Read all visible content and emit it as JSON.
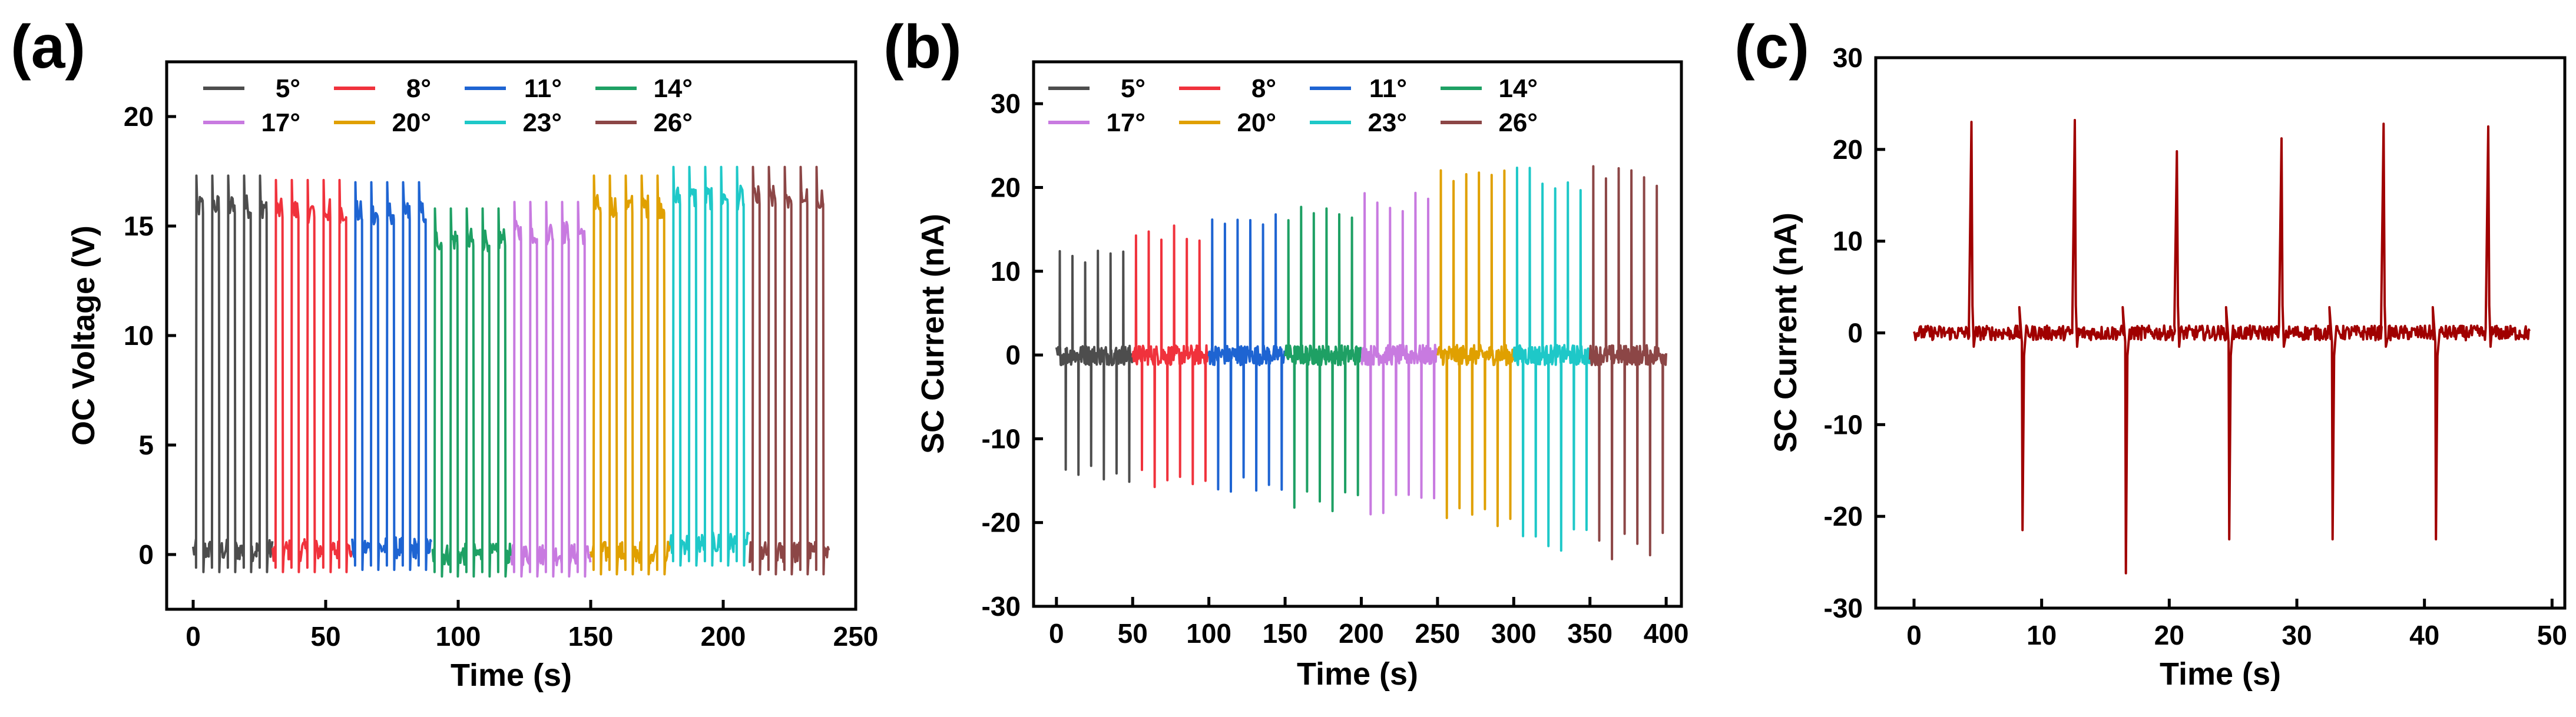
{
  "chart_data": [
    {
      "panel": "(a)",
      "type": "line",
      "xlabel": "Time (s)",
      "ylabel": "OC Voltage (V)",
      "xlim": [
        -10,
        250
      ],
      "ylim": [
        -2.5,
        22.5
      ],
      "xticks": [
        0,
        50,
        100,
        150,
        200,
        250
      ],
      "yticks": [
        0,
        5,
        10,
        15,
        20
      ],
      "legend_position": "top-left",
      "series": [
        {
          "name": "5°",
          "color": "#4d4d4d",
          "t_start": 0,
          "t_end": 30,
          "high": 16.8,
          "low": 0.2,
          "cycles": 5
        },
        {
          "name": "8°",
          "color": "#f0323c",
          "t_start": 30,
          "t_end": 60,
          "high": 16.6,
          "low": 0.2,
          "cycles": 5
        },
        {
          "name": "11°",
          "color": "#1e64d2",
          "t_start": 60,
          "t_end": 90,
          "high": 16.5,
          "low": 0.3,
          "cycles": 5
        },
        {
          "name": "14°",
          "color": "#1ea064",
          "t_start": 90,
          "t_end": 120,
          "high": 15.3,
          "low": 0.0,
          "cycles": 5
        },
        {
          "name": "17°",
          "color": "#c87ae0",
          "t_start": 120,
          "t_end": 150,
          "high": 15.6,
          "low": 0.0,
          "cycles": 5
        },
        {
          "name": "20°",
          "color": "#e0a000",
          "t_start": 150,
          "t_end": 180,
          "high": 16.8,
          "low": 0.1,
          "cycles": 5
        },
        {
          "name": "23°",
          "color": "#1ec8c8",
          "t_start": 180,
          "t_end": 210,
          "high": 17.2,
          "low": 0.5,
          "cycles": 5
        },
        {
          "name": "26°",
          "color": "#8c4646",
          "t_start": 210,
          "t_end": 240,
          "high": 17.2,
          "low": 0.1,
          "cycles": 5
        }
      ]
    },
    {
      "panel": "(b)",
      "type": "line",
      "xlabel": "Time (s)",
      "ylabel": "SC Current (nA)",
      "xlim": [
        -15,
        410
      ],
      "ylim": [
        -30,
        35
      ],
      "xticks": [
        0,
        50,
        100,
        150,
        200,
        250,
        300,
        350,
        400
      ],
      "yticks": [
        -30,
        -20,
        -10,
        0,
        10,
        20,
        30
      ],
      "legend_position": "top-left",
      "series": [
        {
          "name": "5°",
          "color": "#4d4d4d",
          "t_start": 0,
          "t_end": 50,
          "peak": 12.5,
          "trough": -15.5,
          "cycles": 6
        },
        {
          "name": "8°",
          "color": "#f0323c",
          "t_start": 50,
          "t_end": 100,
          "peak": 15.5,
          "trough": -16.0,
          "cycles": 6
        },
        {
          "name": "11°",
          "color": "#1e64d2",
          "t_start": 100,
          "t_end": 150,
          "peak": 17.0,
          "trough": -17.0,
          "cycles": 6
        },
        {
          "name": "14°",
          "color": "#1ea064",
          "t_start": 150,
          "t_end": 200,
          "peak": 18.0,
          "trough": -19.0,
          "cycles": 6
        },
        {
          "name": "17°",
          "color": "#c87ae0",
          "t_start": 200,
          "t_end": 250,
          "peak": 20.0,
          "trough": -19.5,
          "cycles": 6
        },
        {
          "name": "20°",
          "color": "#e0a000",
          "t_start": 250,
          "t_end": 300,
          "peak": 22.5,
          "trough": -21.5,
          "cycles": 6
        },
        {
          "name": "23°",
          "color": "#1ec8c8",
          "t_start": 300,
          "t_end": 350,
          "peak": 22.5,
          "trough": -24.0,
          "cycles": 6
        },
        {
          "name": "26°",
          "color": "#8c4646",
          "t_start": 350,
          "t_end": 400,
          "peak": 23.0,
          "trough": -24.5,
          "cycles": 6
        }
      ]
    },
    {
      "panel": "(c)",
      "type": "line",
      "xlabel": "Time (s)",
      "ylabel": "SC Current (nA)",
      "xlim": [
        -3,
        51
      ],
      "ylim": [
        -30,
        30
      ],
      "xticks": [
        0,
        10,
        20,
        30,
        40,
        50
      ],
      "yticks": [
        -30,
        -20,
        -10,
        0,
        10,
        20,
        30
      ],
      "series": [
        {
          "name": "SC Current",
          "color": "#a00000",
          "peaks": [
            [
              4.5,
              23
            ],
            [
              12.6,
              23.2
            ],
            [
              20.6,
              19.8
            ],
            [
              28.8,
              21.2
            ],
            [
              36.8,
              22.8
            ],
            [
              45.0,
              22.5
            ]
          ],
          "troughs": [
            [
              8.5,
              -21.5
            ],
            [
              16.6,
              -26.2
            ],
            [
              24.7,
              -22.5
            ],
            [
              32.8,
              -22.5
            ],
            [
              40.9,
              -22.5
            ]
          ],
          "t_end": 48.3
        }
      ]
    }
  ]
}
